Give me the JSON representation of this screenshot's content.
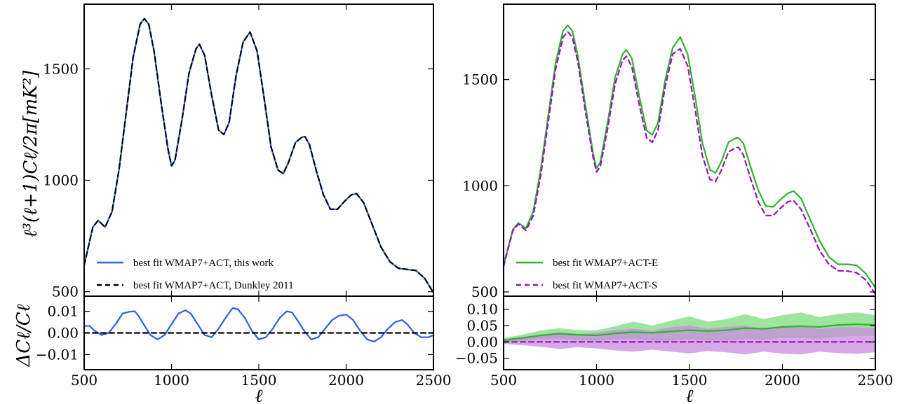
{
  "chart_data": [
    {
      "type": "line",
      "panel": "top-left",
      "ylabel": "ℓ³(ℓ+1)Cℓ/2π[mK²]",
      "xlim": [
        500,
        2500
      ],
      "ylim": [
        480,
        1790
      ],
      "yticks": [
        "500",
        "1000",
        "1500"
      ],
      "legend_position": "bottom-left",
      "series": [
        {
          "name": "best fit WMAP7+ACT, this work",
          "color": "#2a62e0",
          "style": "solid",
          "x": [
            500,
            550,
            580,
            620,
            660,
            700,
            740,
            780,
            820,
            845,
            870,
            900,
            940,
            980,
            1000,
            1020,
            1060,
            1100,
            1140,
            1160,
            1190,
            1230,
            1270,
            1300,
            1330,
            1370,
            1410,
            1450,
            1490,
            1530,
            1570,
            1610,
            1640,
            1670,
            1710,
            1750,
            1765,
            1790,
            1830,
            1870,
            1910,
            1950,
            1990,
            2030,
            2060,
            2100,
            2150,
            2200,
            2250,
            2300,
            2350,
            2400,
            2450,
            2500
          ],
          "y": [
            620,
            790,
            820,
            790,
            860,
            1050,
            1300,
            1550,
            1700,
            1725,
            1700,
            1580,
            1350,
            1140,
            1065,
            1090,
            1270,
            1480,
            1590,
            1610,
            1560,
            1380,
            1225,
            1205,
            1260,
            1470,
            1620,
            1665,
            1580,
            1370,
            1150,
            1045,
            1030,
            1080,
            1170,
            1195,
            1195,
            1160,
            1040,
            935,
            870,
            870,
            905,
            935,
            940,
            900,
            800,
            700,
            635,
            605,
            600,
            595,
            560,
            495
          ]
        },
        {
          "name": "best fit WMAP7+ACT, Dunkley 2011",
          "color": "#000000",
          "style": "dashed",
          "x": [
            500,
            550,
            580,
            620,
            660,
            700,
            740,
            780,
            820,
            845,
            870,
            900,
            940,
            980,
            1000,
            1020,
            1060,
            1100,
            1140,
            1160,
            1190,
            1230,
            1270,
            1300,
            1330,
            1370,
            1410,
            1450,
            1490,
            1530,
            1570,
            1610,
            1640,
            1670,
            1710,
            1750,
            1765,
            1790,
            1830,
            1870,
            1910,
            1950,
            1990,
            2030,
            2060,
            2100,
            2150,
            2200,
            2250,
            2300,
            2350,
            2400,
            2450,
            2500
          ],
          "y": [
            620,
            790,
            820,
            790,
            860,
            1050,
            1300,
            1550,
            1700,
            1725,
            1700,
            1580,
            1350,
            1140,
            1065,
            1090,
            1270,
            1480,
            1590,
            1610,
            1560,
            1380,
            1225,
            1205,
            1260,
            1470,
            1620,
            1665,
            1580,
            1370,
            1150,
            1045,
            1030,
            1080,
            1170,
            1195,
            1195,
            1160,
            1040,
            935,
            870,
            870,
            905,
            935,
            940,
            900,
            800,
            700,
            635,
            605,
            600,
            595,
            560,
            495
          ]
        }
      ]
    },
    {
      "type": "line",
      "panel": "bottom-left",
      "ylabel": "ΔCℓ/Cℓ",
      "xlabel": "ℓ",
      "xlim": [
        500,
        2500
      ],
      "ylim": [
        -0.017,
        0.017
      ],
      "xticks": [
        "500",
        "1000",
        "1500",
        "2000",
        "2500"
      ],
      "yticks": [
        "0.01",
        "0.00",
        "−0.01"
      ],
      "series": [
        {
          "name": "",
          "color": "#2a62e0",
          "style": "solid",
          "x": [
            500,
            530,
            560,
            600,
            640,
            680,
            720,
            760,
            790,
            810,
            840,
            880,
            920,
            960,
            1000,
            1040,
            1080,
            1110,
            1150,
            1190,
            1230,
            1270,
            1310,
            1350,
            1380,
            1420,
            1460,
            1500,
            1540,
            1580,
            1620,
            1660,
            1690,
            1720,
            1760,
            1800,
            1840,
            1880,
            1920,
            1960,
            2000,
            2040,
            2080,
            2120,
            2160,
            2200,
            2240,
            2280,
            2320,
            2350,
            2390,
            2430,
            2470,
            2500
          ],
          "y": [
            0.0032,
            0.0033,
            0.001,
            -0.001,
            0.0,
            0.004,
            0.009,
            0.0098,
            0.01,
            0.008,
            0.004,
            -0.001,
            -0.003,
            -0.001,
            0.004,
            0.009,
            0.0105,
            0.009,
            0.004,
            -0.001,
            -0.002,
            0.002,
            0.007,
            0.0115,
            0.011,
            0.007,
            0.001,
            -0.003,
            -0.002,
            0.002,
            0.007,
            0.01,
            0.0095,
            0.006,
            0.001,
            -0.003,
            -0.002,
            0.002,
            0.006,
            0.008,
            0.0085,
            0.006,
            0.001,
            -0.003,
            -0.004,
            -0.002,
            0.002,
            0.005,
            0.006,
            0.004,
            0.0,
            -0.002,
            -0.002,
            -0.001
          ]
        },
        {
          "name": "",
          "color": "#000000",
          "style": "dashed",
          "x": [
            500,
            2500
          ],
          "y": [
            0,
            0
          ]
        }
      ]
    },
    {
      "type": "line",
      "panel": "top-right",
      "xlim": [
        500,
        2500
      ],
      "ylim": [
        480,
        1855
      ],
      "yticks": [
        "500",
        "1000",
        "1500"
      ],
      "legend_position": "bottom-left",
      "series": [
        {
          "name": "best fit WMAP7+ACT-E",
          "color": "#2bb52b",
          "style": "solid",
          "x": [
            500,
            550,
            580,
            620,
            660,
            700,
            740,
            780,
            820,
            845,
            870,
            900,
            940,
            980,
            1000,
            1020,
            1060,
            1100,
            1140,
            1160,
            1190,
            1230,
            1270,
            1300,
            1330,
            1370,
            1410,
            1450,
            1490,
            1530,
            1570,
            1610,
            1640,
            1670,
            1710,
            1750,
            1765,
            1790,
            1830,
            1870,
            1910,
            1950,
            1990,
            2030,
            2060,
            2100,
            2150,
            2200,
            2250,
            2300,
            2350,
            2400,
            2450,
            2500
          ],
          "y": [
            630,
            795,
            825,
            800,
            880,
            1080,
            1330,
            1580,
            1730,
            1755,
            1730,
            1610,
            1380,
            1160,
            1080,
            1110,
            1300,
            1510,
            1620,
            1640,
            1600,
            1420,
            1260,
            1240,
            1295,
            1500,
            1650,
            1700,
            1620,
            1420,
            1200,
            1075,
            1060,
            1110,
            1205,
            1225,
            1225,
            1200,
            1085,
            980,
            905,
            900,
            935,
            965,
            975,
            940,
            840,
            740,
            665,
            630,
            630,
            625,
            585,
            520
          ]
        },
        {
          "name": "best fit WMAP7+ACT-S",
          "color": "#9b10b8",
          "style": "dashed",
          "x": [
            500,
            550,
            580,
            620,
            660,
            700,
            740,
            780,
            820,
            845,
            870,
            900,
            940,
            980,
            1000,
            1020,
            1060,
            1100,
            1140,
            1160,
            1190,
            1230,
            1270,
            1300,
            1330,
            1370,
            1410,
            1450,
            1490,
            1530,
            1570,
            1610,
            1640,
            1670,
            1710,
            1750,
            1765,
            1790,
            1830,
            1870,
            1910,
            1950,
            1990,
            2030,
            2060,
            2100,
            2150,
            2200,
            2250,
            2300,
            2350,
            2400,
            2450,
            2500
          ],
          "y": [
            620,
            790,
            820,
            790,
            860,
            1050,
            1300,
            1550,
            1700,
            1725,
            1700,
            1580,
            1350,
            1140,
            1065,
            1090,
            1270,
            1480,
            1590,
            1610,
            1560,
            1380,
            1225,
            1205,
            1260,
            1470,
            1620,
            1645,
            1565,
            1360,
            1140,
            1030,
            1020,
            1070,
            1160,
            1180,
            1180,
            1145,
            1030,
            925,
            860,
            860,
            895,
            925,
            930,
            890,
            795,
            695,
            630,
            600,
            598,
            590,
            555,
            490
          ]
        }
      ]
    },
    {
      "type": "area",
      "panel": "bottom-right",
      "xlabel": "ℓ",
      "xlim": [
        500,
        2500
      ],
      "ylim": [
        -0.085,
        0.14
      ],
      "xticks": [
        "500",
        "1000",
        "1500",
        "2000",
        "2500"
      ],
      "yticks": [
        "0.10",
        "0.05",
        "0.00",
        "−0.05"
      ],
      "series": [
        {
          "name": "",
          "color": "#2bb52b",
          "style": "solid",
          "band_color": "#7ed97e",
          "x": [
            500,
            600,
            700,
            800,
            900,
            1000,
            1100,
            1200,
            1300,
            1400,
            1500,
            1600,
            1700,
            1800,
            1900,
            2000,
            2100,
            2200,
            2300,
            2400,
            2500
          ],
          "y": [
            0.005,
            0.012,
            0.02,
            0.025,
            0.022,
            0.02,
            0.026,
            0.03,
            0.028,
            0.032,
            0.036,
            0.033,
            0.036,
            0.042,
            0.04,
            0.046,
            0.048,
            0.046,
            0.052,
            0.054,
            0.052
          ],
          "upper": [
            0.012,
            0.022,
            0.035,
            0.042,
            0.036,
            0.035,
            0.048,
            0.062,
            0.05,
            0.065,
            0.078,
            0.062,
            0.07,
            0.085,
            0.07,
            0.082,
            0.09,
            0.076,
            0.086,
            0.09,
            0.082
          ],
          "lower": [
            0.0,
            0.003,
            0.008,
            0.01,
            0.006,
            0.003,
            0.008,
            0.01,
            0.004,
            0.004,
            0.008,
            0.004,
            0.004,
            0.01,
            0.008,
            0.012,
            0.012,
            0.01,
            0.016,
            0.018,
            0.018
          ]
        },
        {
          "name": "",
          "color": "#9b10b8",
          "style": "dashed",
          "band_color": "#c98be0",
          "x": [
            500,
            600,
            700,
            800,
            900,
            1000,
            1100,
            1200,
            1300,
            1400,
            1500,
            1600,
            1700,
            1800,
            1900,
            2000,
            2100,
            2200,
            2300,
            2400,
            2500
          ],
          "y": [
            0,
            0,
            0,
            0,
            0,
            0,
            0,
            0,
            0,
            0,
            0,
            0,
            0,
            0,
            0,
            0,
            0,
            0,
            0,
            0,
            0
          ],
          "upper": [
            0.008,
            0.015,
            0.022,
            0.03,
            0.024,
            0.028,
            0.036,
            0.04,
            0.034,
            0.045,
            0.05,
            0.04,
            0.046,
            0.05,
            0.04,
            0.048,
            0.05,
            0.04,
            0.045,
            0.045,
            0.042
          ],
          "lower": [
            -0.006,
            -0.01,
            -0.015,
            -0.022,
            -0.016,
            -0.02,
            -0.026,
            -0.03,
            -0.024,
            -0.03,
            -0.035,
            -0.028,
            -0.032,
            -0.038,
            -0.03,
            -0.036,
            -0.038,
            -0.03,
            -0.034,
            -0.036,
            -0.032
          ]
        }
      ]
    }
  ]
}
